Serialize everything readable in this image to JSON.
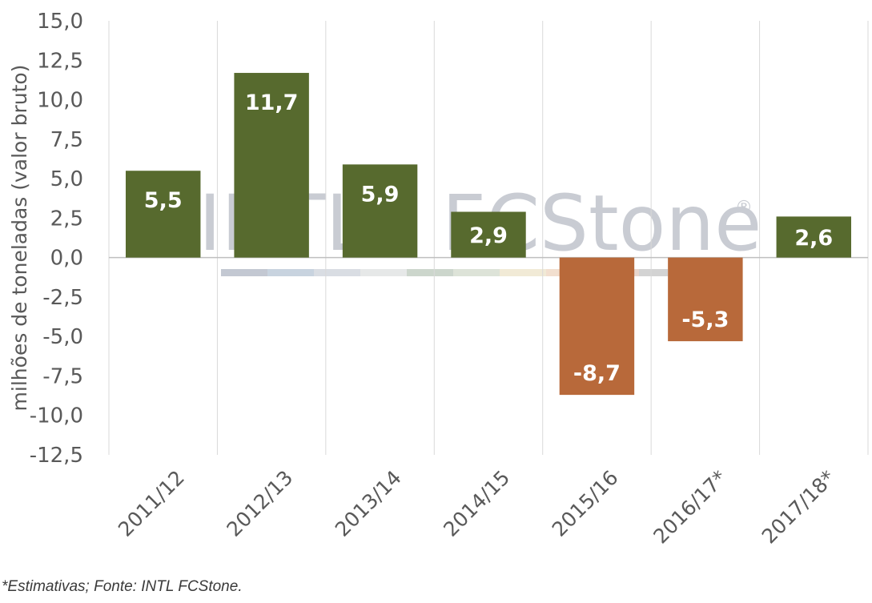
{
  "chart_data": {
    "type": "bar",
    "categories": [
      "2011/12",
      "2012/13",
      "2013/14",
      "2014/15",
      "2015/16",
      "2016/17*",
      "2017/18*"
    ],
    "values": [
      5.5,
      11.7,
      5.9,
      2.9,
      -8.7,
      -5.3,
      2.6
    ],
    "data_labels": [
      "5,5",
      "11,7",
      "5,9",
      "2,9",
      "-8,7",
      "-5,3",
      "2,6"
    ],
    "ylabel": "milhões de toneladas (valor bruto)",
    "ylim": [
      -12.5,
      15.0
    ],
    "yticks": [
      15.0,
      12.5,
      10.0,
      7.5,
      5.0,
      2.5,
      0.0,
      -2.5,
      -5.0,
      -7.5,
      -10.0,
      -12.5
    ],
    "ytick_labels": [
      "15,0",
      "12,5",
      "10,0",
      "7,5",
      "5,0",
      "2,5",
      "0,0",
      "-2,5",
      "-5,0",
      "-7,5",
      "-10,0",
      "-12,5"
    ],
    "grid": "vertical",
    "colors": {
      "positive": "#576a2e",
      "negative": "#b8693a",
      "grid": "#d9d9d9",
      "axis": "#bfbfbf"
    }
  },
  "watermark": {
    "text": "INTL · FCStone",
    "registered": "®"
  },
  "footnote": "*Estimativas; Fonte: INTL FCStone."
}
